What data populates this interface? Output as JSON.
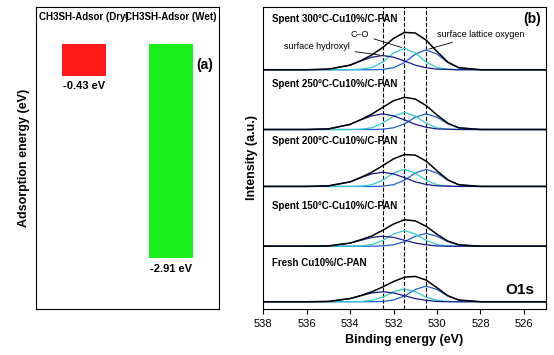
{
  "chart_data": [
    {
      "type": "bar",
      "ylabel": "Adsorption energy (eV)",
      "panel_label": "(a)",
      "categories": [
        "CH3SH-Adsor (Dry)",
        "CH3SH-Adsor (Wet)"
      ],
      "values": [
        -0.43,
        -2.91
      ],
      "value_labels": [
        "-0.43 eV",
        "-2.91 eV"
      ],
      "data_labels": true,
      "colors": [
        "#ff1a1a",
        "#1aee1a"
      ],
      "ylim": [
        -3.6,
        0.5
      ],
      "yticks": [],
      "tick_labels": false
    },
    {
      "type": "line",
      "xlabel": "Binding energy (eV)",
      "ylabel": "Intensity (a.u.)",
      "panel_label": "(b)",
      "x": [
        538,
        536,
        535,
        534,
        533.5,
        533,
        532.5,
        532,
        531.5,
        531,
        530.5,
        530,
        529.5,
        529,
        528,
        526,
        525
      ],
      "xlim": [
        538,
        525
      ],
      "xticks": [
        538,
        536,
        534,
        532,
        530,
        528,
        526
      ],
      "ylim": [
        0,
        10.6
      ],
      "yticks": [],
      "tick_labels": "x",
      "reference_lines": [
        532.5,
        531.5,
        530.5
      ],
      "annotations": [
        "C–O",
        "surface hydroxyl",
        "surface lattice oxygen",
        "O1s"
      ],
      "spectra": [
        {
          "label": "Fresh Cu10%/C-PAN",
          "series": [
            {
              "color": "#000000",
              "values": [
                0.25,
                0.25,
                0.26,
                0.36,
                0.47,
                0.6,
                0.77,
                0.96,
                1.11,
                1.14,
                1.01,
                0.74,
                0.46,
                0.31,
                0.25,
                0.25,
                0.25
              ]
            },
            {
              "color": "#1f5fd6",
              "values": [
                0.25,
                0.25,
                0.25,
                0.25,
                0.25,
                0.25,
                0.26,
                0.31,
                0.45,
                0.68,
                0.8,
                0.68,
                0.45,
                0.31,
                0.25,
                0.25,
                0.25
              ]
            },
            {
              "color": "#33cccc",
              "values": [
                0.25,
                0.25,
                0.25,
                0.25,
                0.26,
                0.3,
                0.41,
                0.6,
                0.7,
                0.6,
                0.41,
                0.3,
                0.26,
                0.25,
                0.25,
                0.25,
                0.25
              ]
            },
            {
              "color": "#1a1a8c",
              "values": [
                0.25,
                0.25,
                0.26,
                0.36,
                0.46,
                0.56,
                0.6,
                0.56,
                0.46,
                0.36,
                0.3,
                0.26,
                0.25,
                0.25,
                0.25,
                0.25,
                0.25
              ]
            }
          ]
        },
        {
          "label": "Spent 150°C-Cu10%/C-PAN",
          "series": [
            {
              "color": "#000000",
              "values": [
                2.2,
                2.2,
                2.21,
                2.31,
                2.43,
                2.56,
                2.76,
                2.98,
                3.13,
                3.09,
                2.9,
                2.62,
                2.38,
                2.25,
                2.2,
                2.2,
                2.2
              ]
            },
            {
              "color": "#1f5fd6",
              "values": [
                2.2,
                2.2,
                2.2,
                2.2,
                2.2,
                2.2,
                2.21,
                2.25,
                2.36,
                2.55,
                2.65,
                2.55,
                2.36,
                2.25,
                2.2,
                2.2,
                2.2
              ]
            },
            {
              "color": "#33cccc",
              "values": [
                2.2,
                2.2,
                2.2,
                2.2,
                2.21,
                2.26,
                2.4,
                2.63,
                2.75,
                2.63,
                2.4,
                2.26,
                2.21,
                2.2,
                2.2,
                2.2,
                2.2
              ]
            },
            {
              "color": "#1a1a8c",
              "values": [
                2.2,
                2.2,
                2.21,
                2.31,
                2.41,
                2.51,
                2.55,
                2.51,
                2.41,
                2.31,
                2.25,
                2.21,
                2.2,
                2.2,
                2.2,
                2.2,
                2.2
              ]
            }
          ]
        },
        {
          "label": "Spent 200°C-Cu10%/C-PAN",
          "series": [
            {
              "color": "#000000",
              "values": [
                4.3,
                4.3,
                4.32,
                4.46,
                4.62,
                4.8,
                5.03,
                5.27,
                5.42,
                5.4,
                5.19,
                4.85,
                4.53,
                4.36,
                4.3,
                4.3,
                4.3
              ]
            },
            {
              "color": "#1f5fd6",
              "values": [
                4.3,
                4.3,
                4.3,
                4.3,
                4.3,
                4.3,
                4.31,
                4.36,
                4.52,
                4.77,
                4.9,
                4.77,
                4.52,
                4.36,
                4.3,
                4.3,
                4.3
              ]
            },
            {
              "color": "#33cccc",
              "values": [
                4.3,
                4.3,
                4.3,
                4.3,
                4.31,
                4.36,
                4.52,
                4.77,
                4.9,
                4.77,
                4.52,
                4.36,
                4.31,
                4.3,
                4.3,
                4.3,
                4.3
              ]
            },
            {
              "color": "#1a1a8c",
              "values": [
                4.3,
                4.3,
                4.32,
                4.46,
                4.61,
                4.74,
                4.8,
                4.74,
                4.61,
                4.46,
                4.37,
                4.32,
                4.31,
                4.3,
                4.3,
                4.3,
                4.3
              ]
            }
          ]
        },
        {
          "label": "Spent 250°C-Cu10%/C-PAN",
          "series": [
            {
              "color": "#000000",
              "values": [
                6.3,
                6.3,
                6.32,
                6.48,
                6.65,
                6.84,
                7.08,
                7.31,
                7.43,
                7.37,
                7.14,
                6.81,
                6.52,
                6.36,
                6.3,
                6.3,
                6.3
              ]
            },
            {
              "color": "#1f5fd6",
              "values": [
                6.3,
                6.3,
                6.3,
                6.3,
                6.3,
                6.3,
                6.31,
                6.36,
                6.5,
                6.73,
                6.85,
                6.73,
                6.5,
                6.36,
                6.3,
                6.3,
                6.3
              ]
            },
            {
              "color": "#33cccc",
              "values": [
                6.3,
                6.3,
                6.3,
                6.3,
                6.31,
                6.36,
                6.52,
                6.77,
                6.9,
                6.77,
                6.52,
                6.36,
                6.31,
                6.3,
                6.3,
                6.3,
                6.3
              ]
            },
            {
              "color": "#1a1a8c",
              "values": [
                6.3,
                6.3,
                6.32,
                6.48,
                6.64,
                6.78,
                6.85,
                6.78,
                6.64,
                6.48,
                6.38,
                6.32,
                6.31,
                6.3,
                6.3,
                6.3,
                6.3
              ]
            }
          ]
        },
        {
          "label": "Spent 300°C-Cu10%/C-PAN",
          "series": [
            {
              "color": "#000000",
              "values": [
                8.4,
                8.4,
                8.42,
                8.56,
                8.72,
                8.92,
                9.18,
                9.5,
                9.71,
                9.69,
                9.44,
                9.04,
                8.67,
                8.47,
                8.4,
                8.4,
                8.4
              ]
            },
            {
              "color": "#1f5fd6",
              "values": [
                8.4,
                8.4,
                8.4,
                8.4,
                8.4,
                8.4,
                8.41,
                8.47,
                8.65,
                8.95,
                9.1,
                8.95,
                8.65,
                8.47,
                8.4,
                8.4,
                8.4
              ]
            },
            {
              "color": "#33cccc",
              "values": [
                8.4,
                8.4,
                8.4,
                8.4,
                8.42,
                8.48,
                8.67,
                8.99,
                9.15,
                8.99,
                8.67,
                8.48,
                8.42,
                8.4,
                8.4,
                8.4,
                8.4
              ]
            },
            {
              "color": "#1a1a8c",
              "values": [
                8.4,
                8.4,
                8.42,
                8.56,
                8.71,
                8.84,
                8.9,
                8.84,
                8.71,
                8.56,
                8.47,
                8.42,
                8.41,
                8.4,
                8.4,
                8.4,
                8.4
              ]
            }
          ]
        }
      ]
    }
  ]
}
